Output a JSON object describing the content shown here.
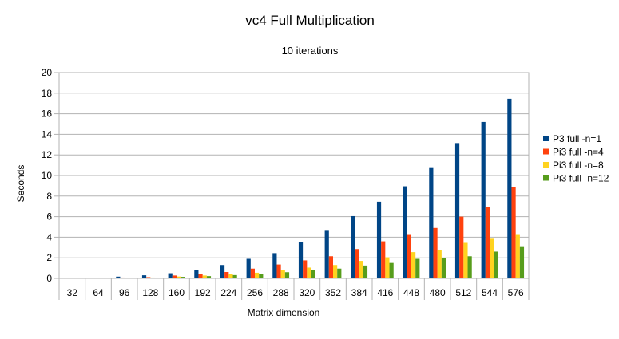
{
  "chart_data": {
    "type": "bar",
    "title": "vc4 Full Multiplication",
    "subtitle": "10 iterations",
    "xlabel": "Matrix dimension",
    "ylabel": "Seconds",
    "ylim": [
      0,
      20
    ],
    "yticks": [
      0,
      2,
      4,
      6,
      8,
      10,
      12,
      14,
      16,
      18,
      20
    ],
    "grid": true,
    "legend_position": "right",
    "categories": [
      "32",
      "64",
      "96",
      "128",
      "160",
      "192",
      "224",
      "256",
      "288",
      "320",
      "352",
      "384",
      "416",
      "448",
      "480",
      "512",
      "544",
      "576"
    ],
    "series": [
      {
        "name": "P3 full -n=1",
        "color": "#004586",
        "values": [
          0.02,
          0.06,
          0.17,
          0.3,
          0.5,
          0.85,
          1.3,
          1.9,
          2.45,
          3.55,
          4.7,
          6.05,
          7.45,
          8.95,
          10.8,
          13.15,
          15.2,
          17.45
        ]
      },
      {
        "name": "Pi3 full -n=4",
        "color": "#ff420e",
        "values": [
          0.01,
          0.03,
          0.08,
          0.12,
          0.28,
          0.43,
          0.62,
          0.95,
          1.35,
          1.75,
          2.15,
          2.85,
          3.6,
          4.3,
          4.9,
          6.0,
          6.9,
          8.85
        ]
      },
      {
        "name": "Pi3 full -n=8",
        "color": "#ffd320",
        "values": [
          0.01,
          0.02,
          0.05,
          0.08,
          0.18,
          0.28,
          0.4,
          0.55,
          0.8,
          1.05,
          1.3,
          1.7,
          2.05,
          2.55,
          2.75,
          3.45,
          3.85,
          4.3
        ]
      },
      {
        "name": "Pi3 full -n=12",
        "color": "#579d1c",
        "values": [
          0.01,
          0.02,
          0.04,
          0.07,
          0.15,
          0.22,
          0.32,
          0.45,
          0.6,
          0.8,
          0.95,
          1.25,
          1.5,
          1.9,
          1.95,
          2.15,
          2.6,
          3.05
        ]
      }
    ]
  }
}
